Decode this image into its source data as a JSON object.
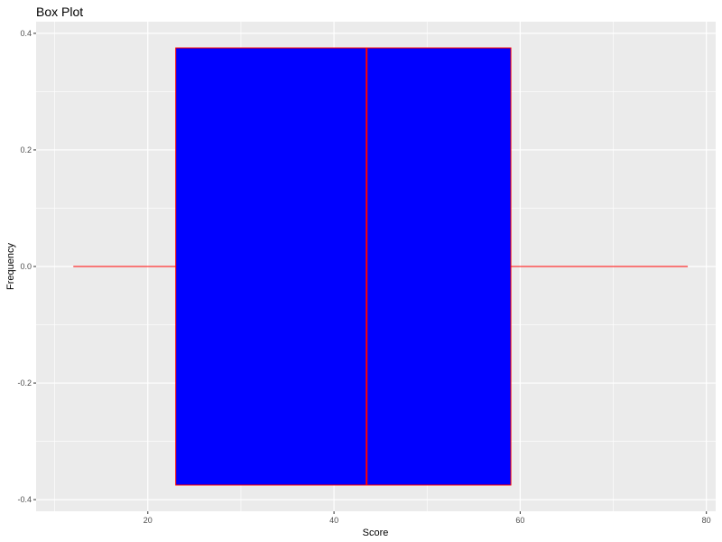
{
  "chart_data": {
    "type": "boxplot",
    "title": "Box Plot",
    "xlabel": "Score",
    "ylabel": "Frequency",
    "xlim": [
      8,
      81
    ],
    "ylim": [
      -0.42,
      0.42
    ],
    "x_ticks": [
      20,
      40,
      60,
      80
    ],
    "x_tick_labels": [
      "20",
      "40",
      "60",
      "80"
    ],
    "y_ticks": [
      -0.4,
      -0.2,
      0.0,
      0.2,
      0.4
    ],
    "y_tick_labels": [
      "-0.4",
      "-0.2",
      "0.0",
      "0.2",
      "0.4"
    ],
    "box": {
      "min": 12,
      "q1": 23,
      "median": 43.5,
      "q3": 59,
      "max": 78,
      "y_center": 0.0,
      "half_height": 0.375
    },
    "grid": true,
    "colors": {
      "panel": "#ebebeb",
      "grid_major": "#ffffff",
      "box_fill": "#0000ff",
      "box_outline": "#ff0000",
      "whisker": "#ff0000",
      "median": "#ff0000"
    }
  }
}
